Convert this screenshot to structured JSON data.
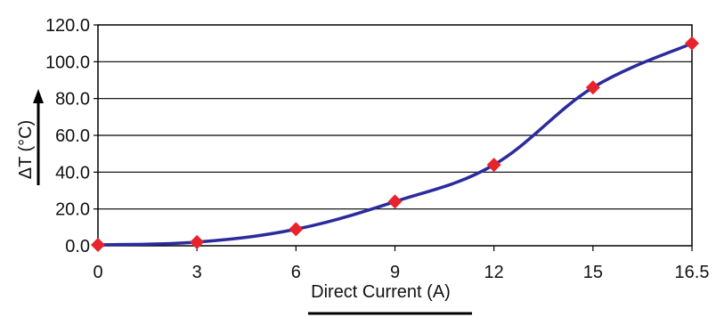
{
  "chart_data": {
    "type": "line",
    "title": "",
    "xlabel": "Direct Current (A)",
    "ylabel": "ΔT (°C)",
    "x_tick_labels": [
      "0",
      "3",
      "6",
      "9",
      "12",
      "15",
      "16.5"
    ],
    "y_tick_labels": [
      "0.0",
      "20.0",
      "40.0",
      "60.0",
      "80.0",
      "100.0",
      "120.0"
    ],
    "ylim": [
      0,
      120
    ],
    "grid": "horizontal",
    "legend": "none",
    "series": [
      {
        "name": "",
        "x": [
          "0",
          "3",
          "6",
          "9",
          "12",
          "15",
          "16.5"
        ],
        "values": [
          0.5,
          2,
          9,
          24,
          44,
          86,
          110
        ],
        "line_color": "#2b2b9e",
        "marker_color": "#e8232b",
        "marker": "diamond"
      }
    ]
  }
}
